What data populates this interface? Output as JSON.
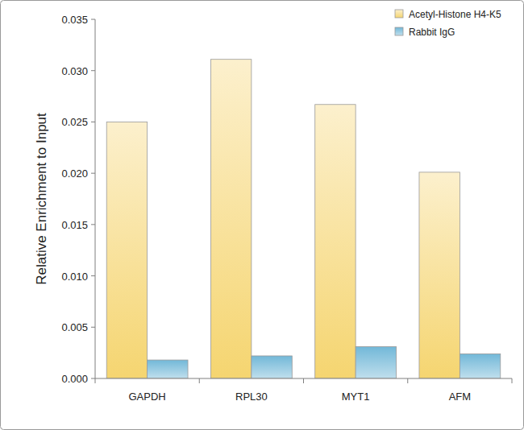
{
  "chart_data": {
    "type": "bar",
    "y_label": "Relative Enrichment to Input",
    "categories": [
      "GAPDH",
      "RPL30",
      "MYT1",
      "AFM"
    ],
    "series": [
      {
        "name": "Acetyl-Histone H4-K5",
        "color": "#f5d570",
        "values": [
          0.025,
          0.0311,
          0.0267,
          0.0201
        ]
      },
      {
        "name": "Rabbit IgG",
        "color": "#72b8d8",
        "values": [
          0.0018,
          0.0022,
          0.0031,
          0.0024
        ]
      }
    ],
    "ylim": [
      0,
      0.035
    ],
    "yticks": [
      {
        "value": 0,
        "label": "0.000"
      },
      {
        "value": 0.005,
        "label": "0.005"
      },
      {
        "value": 0.01,
        "label": "0.010"
      },
      {
        "value": 0.015,
        "label": "0.015"
      },
      {
        "value": 0.02,
        "label": "0.020"
      },
      {
        "value": 0.025,
        "label": "0.025"
      },
      {
        "value": 0.03,
        "label": "0.030"
      },
      {
        "value": 0.035,
        "label": "0.035"
      }
    ],
    "grid": false,
    "legend": "top-right"
  }
}
